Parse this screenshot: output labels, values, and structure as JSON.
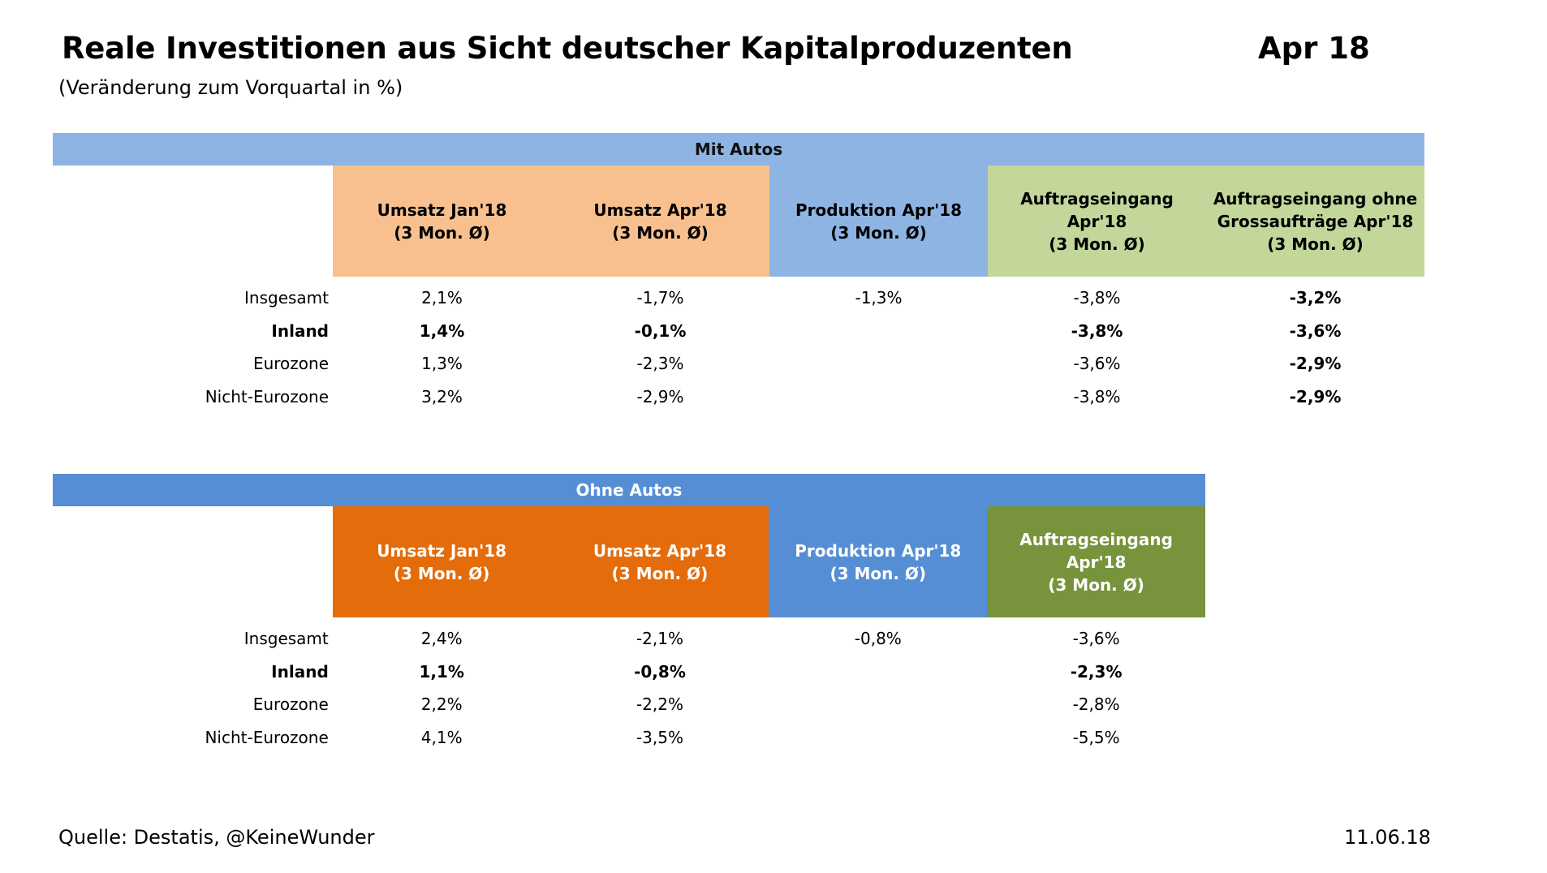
{
  "title": "Reale Investitionen aus Sicht deutscher Kapitalproduzenten",
  "title_date": "Apr 18",
  "subtitle": "(Veränderung zum Vorquartal in %)",
  "sections": [
    {
      "banner": "Mit Autos",
      "banner_color": "#8EB4E3",
      "headers": [
        {
          "l1": "Umsatz Jan'18",
          "l2": "(3 Mon. Ø)",
          "l3": "",
          "color": "#F8C08F"
        },
        {
          "l1": "Umsatz Apr'18",
          "l2": "(3 Mon. Ø)",
          "l3": "",
          "color": "#F8C08F"
        },
        {
          "l1": "Produktion Apr'18",
          "l2": "(3 Mon. Ø)",
          "l3": "",
          "color": "#8EB4E3"
        },
        {
          "l1": "Auftragseingang",
          "l2": "Apr'18",
          "l3": "(3 Mon. Ø)",
          "color": "#C3D79B"
        },
        {
          "l1": "Auftragseingang ohne",
          "l2": "Grossaufträge Apr'18",
          "l3": "(3 Mon. Ø)",
          "color": "#C3D79B"
        }
      ],
      "rows": [
        {
          "label": "Insgesamt",
          "bold": false,
          "cells": [
            "2,1%",
            "-1,7%",
            "-1,3%",
            "-3,8%",
            "-3,2%"
          ]
        },
        {
          "label": "Inland",
          "bold": true,
          "cells": [
            "1,4%",
            "-0,1%",
            "",
            "-3,8%",
            "-3,6%"
          ]
        },
        {
          "label": "Eurozone",
          "bold": false,
          "cells": [
            "1,3%",
            "-2,3%",
            "",
            "-3,6%",
            "-2,9%"
          ]
        },
        {
          "label": "Nicht-Eurozone",
          "bold": false,
          "cells": [
            "3,2%",
            "-2,9%",
            "",
            "-3,8%",
            "-2,9%"
          ]
        }
      ]
    },
    {
      "banner": "Ohne Autos",
      "banner_color": "#558ED5",
      "headers": [
        {
          "l1": "Umsatz Jan'18",
          "l2": "(3 Mon. Ø)",
          "l3": "",
          "color": "#E46C0A"
        },
        {
          "l1": "Umsatz Apr'18",
          "l2": "(3 Mon. Ø)",
          "l3": "",
          "color": "#E46C0A"
        },
        {
          "l1": "Produktion Apr'18",
          "l2": "(3 Mon. Ø)",
          "l3": "",
          "color": "#558ED5"
        },
        {
          "l1": "Auftragseingang",
          "l2": "Apr'18",
          "l3": "(3 Mon. Ø)",
          "color": "#77933C"
        }
      ],
      "rows": [
        {
          "label": "Insgesamt",
          "bold": false,
          "cells": [
            "2,4%",
            "-2,1%",
            "-0,8%",
            "-3,6%"
          ]
        },
        {
          "label": "Inland",
          "bold": true,
          "cells": [
            "1,1%",
            "-0,8%",
            "",
            "-2,3%"
          ]
        },
        {
          "label": "Eurozone",
          "bold": false,
          "cells": [
            "2,2%",
            "-2,2%",
            "",
            "-2,8%"
          ]
        },
        {
          "label": "Nicht-Eurozone",
          "bold": false,
          "cells": [
            "4,1%",
            "-3,5%",
            "",
            "-5,5%"
          ]
        }
      ]
    }
  ],
  "footer": {
    "source": "Quelle: Destatis, @KeineWunder",
    "date": "11.06.18"
  }
}
